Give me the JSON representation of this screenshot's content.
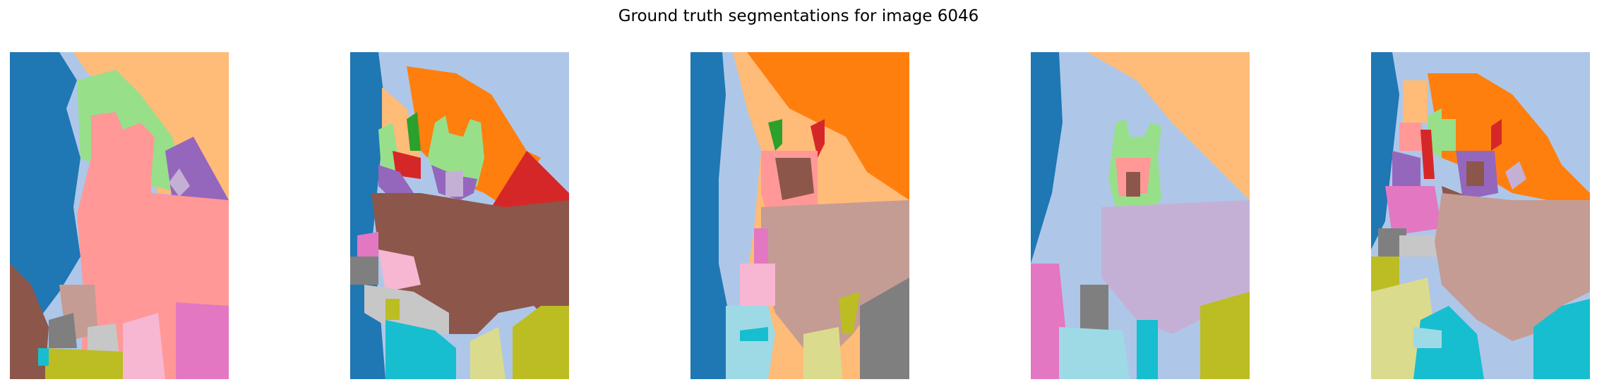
{
  "figure": {
    "title": "Ground truth segmentations for image 6046"
  },
  "colors": {
    "tab_blue": "#1f77b4",
    "tab_light_blue": "#aec7e8",
    "tab_orange": "#ff7f0e",
    "tab_light_orange": "#ffbb78",
    "tab_green": "#2ca02c",
    "tab_light_green": "#98df8a",
    "tab_red": "#d62728",
    "tab_pink": "#ff9896",
    "tab_purple": "#9467bd",
    "tab_light_purple": "#c5b0d5",
    "tab_brown": "#8c564b",
    "tab_light_brown": "#c49c94",
    "tab_magenta": "#e377c2",
    "tab_light_magenta": "#f7b6d2",
    "tab_gray": "#7f7f7f",
    "tab_light_gray": "#c7c7c7",
    "tab_olive": "#bcbd22",
    "tab_light_olive": "#dbdb8d",
    "tab_cyan": "#17becf",
    "tab_light_cyan": "#9edae5"
  },
  "panels": [
    {
      "segmentation_index": 1
    },
    {
      "segmentation_index": 2
    },
    {
      "segmentation_index": 3
    },
    {
      "segmentation_index": 4
    },
    {
      "segmentation_index": 5
    }
  ]
}
